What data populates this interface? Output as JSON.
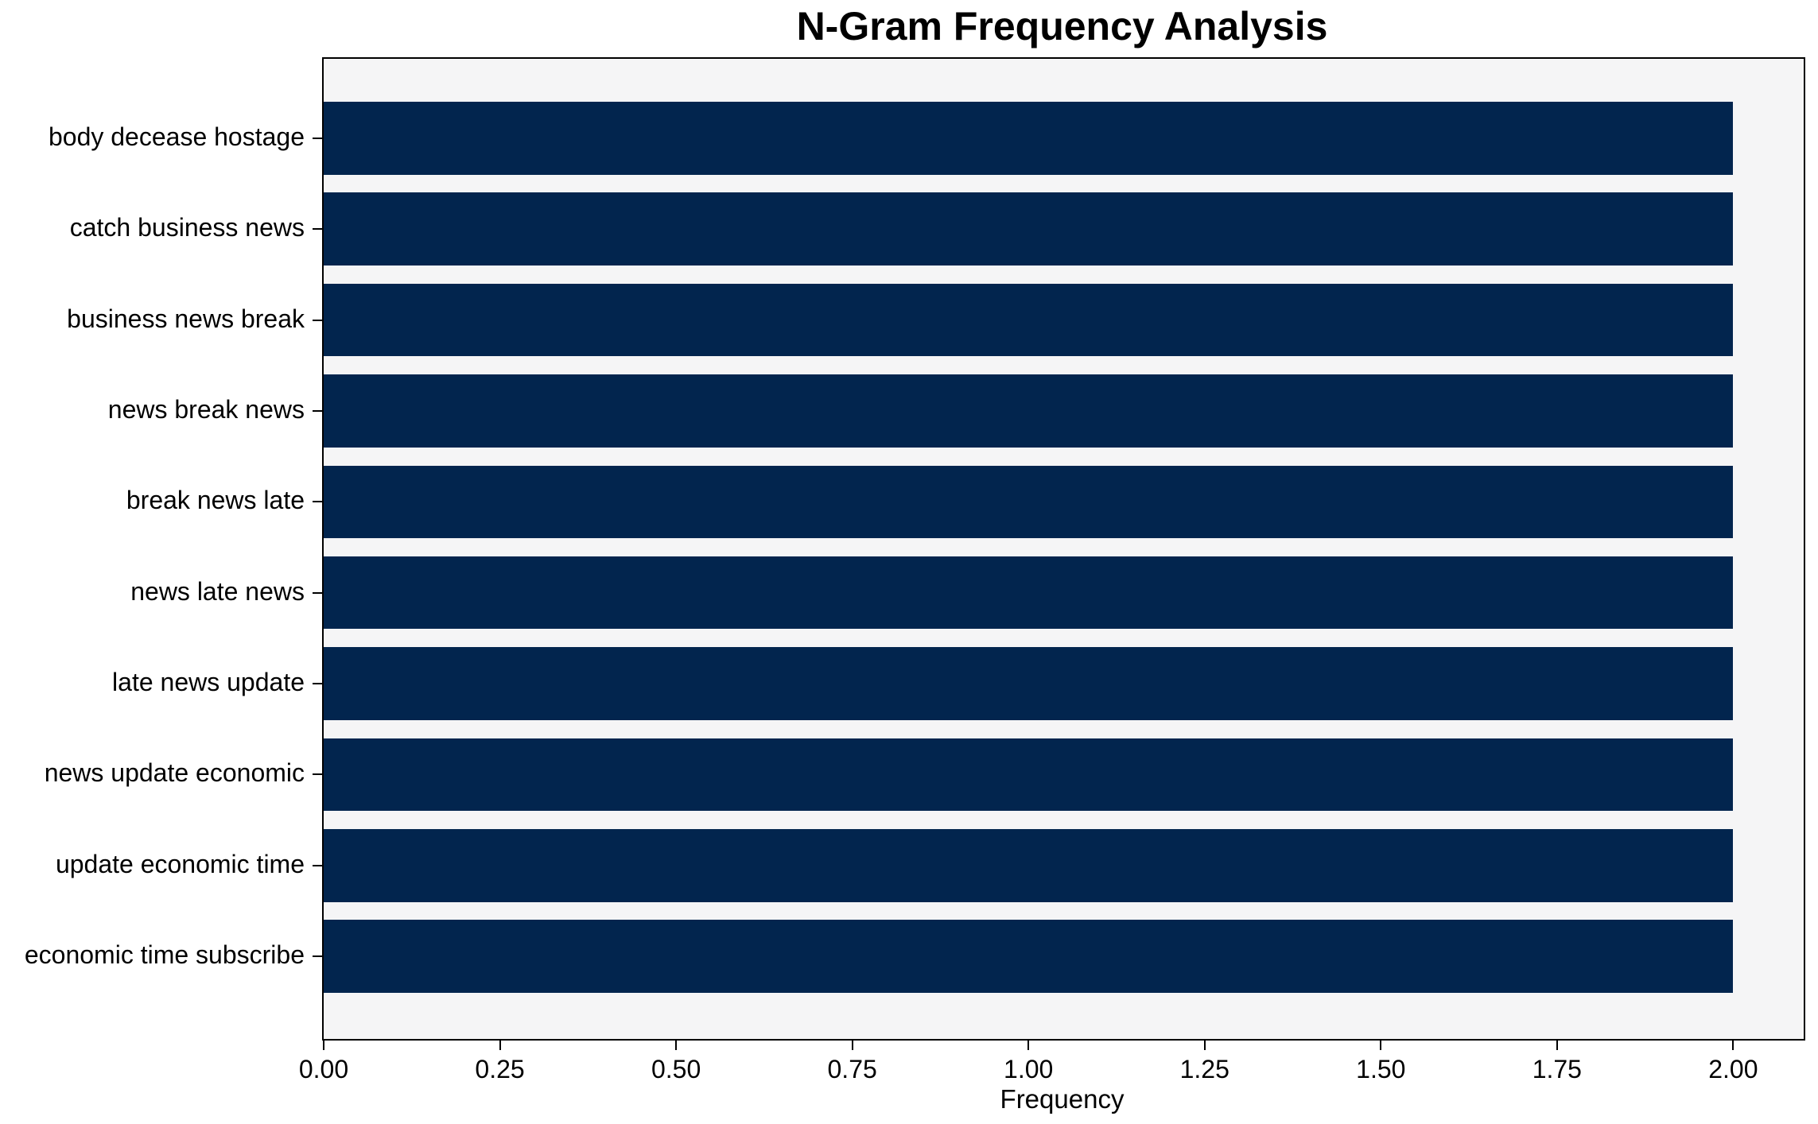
{
  "chart_data": {
    "type": "bar",
    "orientation": "horizontal",
    "title": "N-Gram Frequency Analysis",
    "xlabel": "Frequency",
    "ylabel": "",
    "categories": [
      "body decease hostage",
      "catch business news",
      "business news break",
      "news break news",
      "break news late",
      "news late news",
      "late news update",
      "news update economic",
      "update economic time",
      "economic time subscribe"
    ],
    "values": [
      2,
      2,
      2,
      2,
      2,
      2,
      2,
      2,
      2,
      2
    ],
    "xlim": [
      0,
      2.1
    ],
    "x_tick_values": [
      0.0,
      0.25,
      0.5,
      0.75,
      1.0,
      1.25,
      1.5,
      1.75,
      2.0
    ],
    "x_tick_labels": [
      "0.00",
      "0.25",
      "0.50",
      "0.75",
      "1.00",
      "1.25",
      "1.50",
      "1.75",
      "2.00"
    ],
    "grid": false,
    "legend": null,
    "colors": {
      "bar": "#02254e",
      "plot_background": "#f5f5f6",
      "figure_background": "#ffffff",
      "spine": "#000000",
      "text": "#000000"
    }
  }
}
